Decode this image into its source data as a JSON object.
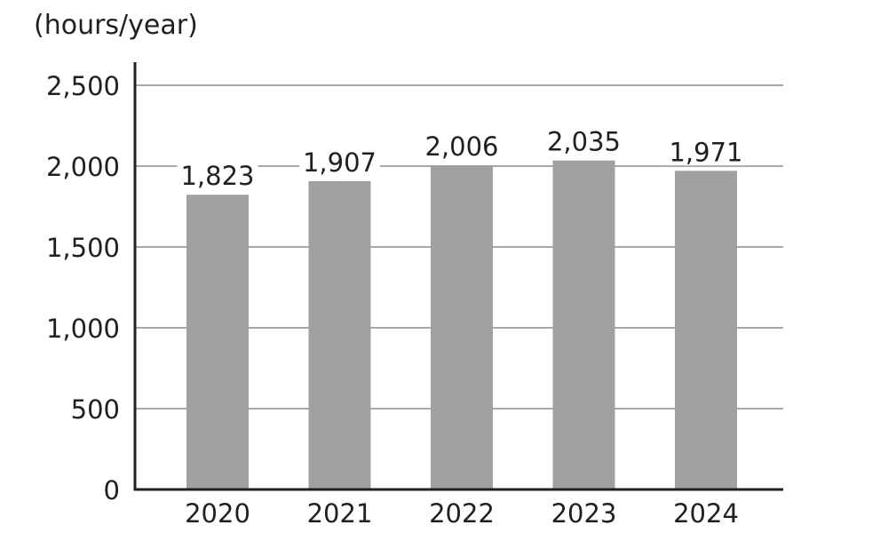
{
  "chart_data": {
    "type": "bar",
    "unit_label": "(hours/year)",
    "categories": [
      "2020",
      "2021",
      "2022",
      "2023",
      "2024"
    ],
    "values": [
      1823,
      1907,
      2006,
      2035,
      1971
    ],
    "data_labels": [
      "1,823",
      "1,907",
      "2,006",
      "2,035",
      "1,971"
    ],
    "ylim": [
      0,
      2500
    ],
    "yticks": [
      0,
      500,
      1000,
      1500,
      2000,
      2500
    ],
    "ytick_labels": [
      "0",
      "500",
      "1,000",
      "1,500",
      "2,000",
      "2,500"
    ],
    "grid": true,
    "legend": "none",
    "colors": {
      "bar": "#a0a0a0",
      "axis": "#231f20",
      "grid": "#8c8c8c",
      "text": "#231f20"
    }
  }
}
